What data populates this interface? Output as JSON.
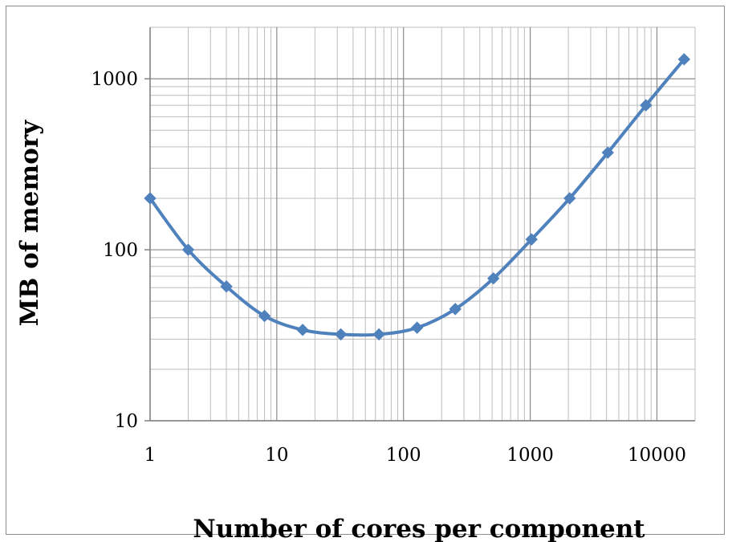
{
  "chart_data": {
    "type": "line",
    "xlabel": "Number of cores per component",
    "ylabel": "MB of memory",
    "x_scale": "log",
    "y_scale": "log",
    "xlim": [
      1,
      20000
    ],
    "ylim": [
      10,
      2000
    ],
    "x_ticks": [
      "1",
      "10",
      "100",
      "1000",
      "10000"
    ],
    "y_ticks": [
      "10",
      "100",
      "1000"
    ],
    "grid": true,
    "legend": "none",
    "series": [
      {
        "color": "#4f81bd",
        "marker": "diamond",
        "smooth": true,
        "x": [
          1,
          2,
          4,
          8,
          16,
          32,
          64,
          128,
          256,
          512,
          1024,
          2048,
          4096,
          8192,
          16384
        ],
        "y": [
          200,
          100,
          61,
          41,
          34,
          32,
          32,
          35,
          45,
          68,
          115,
          200,
          370,
          700,
          1300
        ]
      }
    ]
  }
}
